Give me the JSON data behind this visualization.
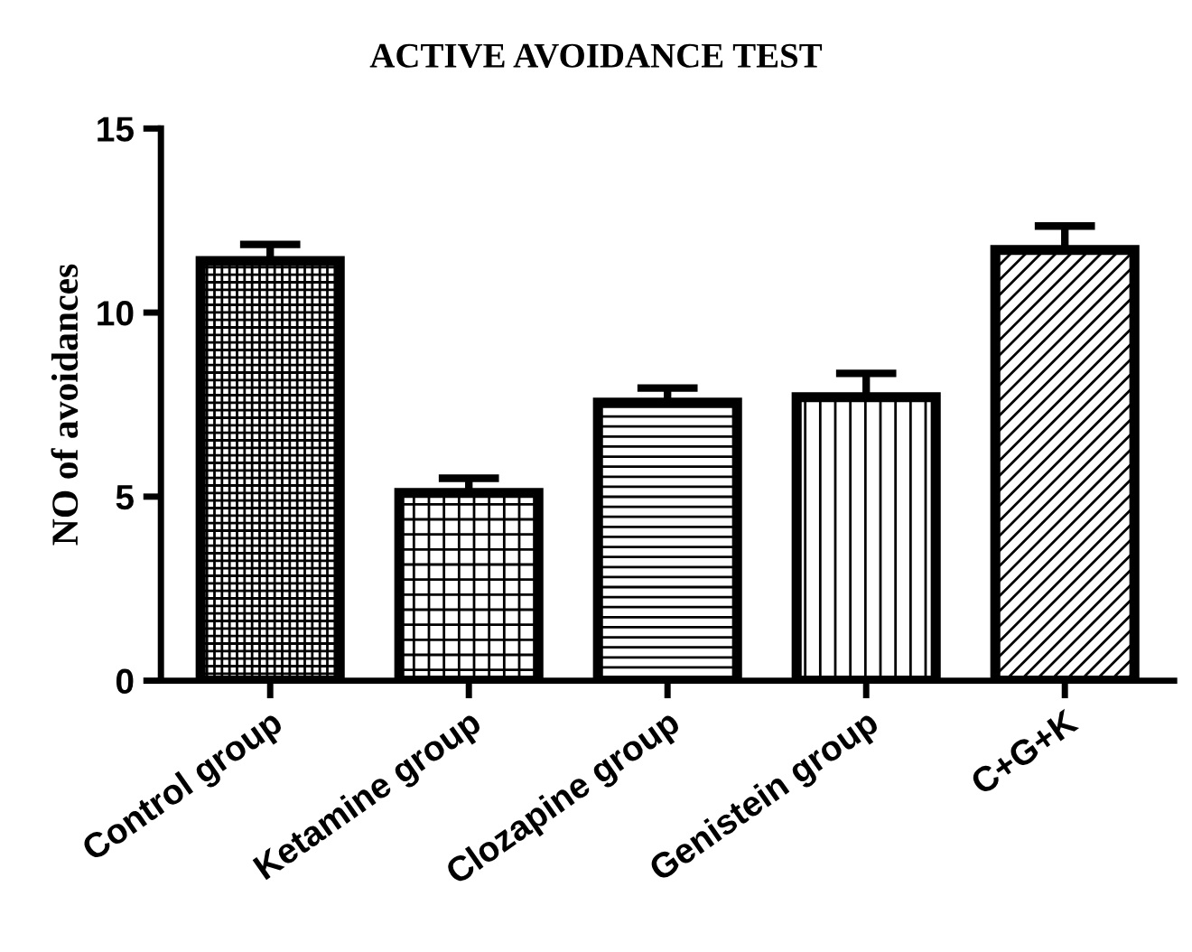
{
  "chart_data": {
    "type": "bar",
    "title": "ACTIVE AVOIDANCE TEST",
    "ylabel": "NO of avoidances",
    "categories": [
      "Control group",
      "Ketamine group",
      "Clozapine group",
      "Genistein group",
      "C+G+K"
    ],
    "values": [
      11.4,
      5.1,
      7.55,
      7.7,
      11.7
    ],
    "errors": [
      0.45,
      0.4,
      0.4,
      0.65,
      0.65
    ],
    "color": "#000000",
    "ylim": [
      0,
      15
    ],
    "yticks": [
      0,
      5,
      10,
      15
    ],
    "grid": false,
    "legend": false
  }
}
